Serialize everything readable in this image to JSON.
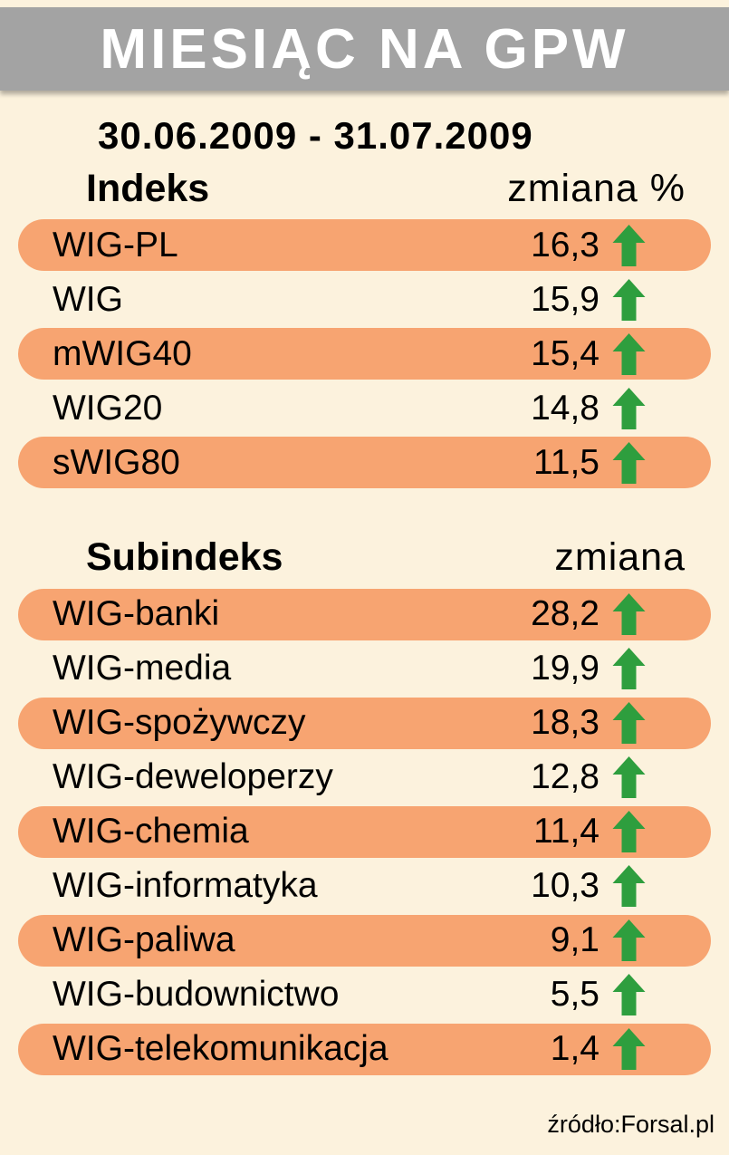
{
  "header": {
    "title": "MIESIĄC NA GPW"
  },
  "period": "30.06.2009 - 31.07.2009",
  "sections": [
    {
      "name_header": "Indeks",
      "change_header": "zmiana %",
      "rows": [
        {
          "label": "WIG-PL",
          "value": "16,3",
          "direction": "up"
        },
        {
          "label": "WIG",
          "value": "15,9",
          "direction": "up"
        },
        {
          "label": "mWIG40",
          "value": "15,4",
          "direction": "up"
        },
        {
          "label": "WIG20",
          "value": "14,8",
          "direction": "up"
        },
        {
          "label": "sWIG80",
          "value": "11,5",
          "direction": "up"
        }
      ]
    },
    {
      "name_header": "Subindeks",
      "change_header": "zmiana",
      "rows": [
        {
          "label": "WIG-banki",
          "value": "28,2",
          "direction": "up"
        },
        {
          "label": "WIG-media",
          "value": "19,9",
          "direction": "up"
        },
        {
          "label": "WIG-spożywczy",
          "value": "18,3",
          "direction": "up"
        },
        {
          "label": "WIG-deweloperzy",
          "value": "12,8",
          "direction": "up"
        },
        {
          "label": "WIG-chemia",
          "value": "11,4",
          "direction": "up"
        },
        {
          "label": "WIG-informatyka",
          "value": "10,3",
          "direction": "up"
        },
        {
          "label": "WIG-paliwa",
          "value": "9,1",
          "direction": "up"
        },
        {
          "label": "WIG-budownictwo",
          "value": "5,5",
          "direction": "up"
        },
        {
          "label": "WIG-telekomunikacja",
          "value": "1,4",
          "direction": "up"
        }
      ]
    }
  ],
  "footer": {
    "source": "źródło:Forsal.pl"
  },
  "colors": {
    "header_bg": "#a3a3a3",
    "page_bg": "#fcf2dd",
    "row_highlight": "#f7a471",
    "arrow_up": "#2e9e3e",
    "title_text": "#ffffff",
    "body_text": "#000000"
  },
  "chart_data": {
    "type": "table",
    "title": "MIESIĄC NA GPW",
    "subtitle": "30.06.2009 - 31.07.2009",
    "tables": [
      {
        "name": "Indeks",
        "value_label": "zmiana %",
        "categories": [
          "WIG-PL",
          "WIG",
          "mWIG40",
          "WIG20",
          "sWIG80"
        ],
        "values": [
          16.3,
          15.9,
          15.4,
          14.8,
          11.5
        ],
        "direction": [
          "up",
          "up",
          "up",
          "up",
          "up"
        ]
      },
      {
        "name": "Subindeks",
        "value_label": "zmiana",
        "categories": [
          "WIG-banki",
          "WIG-media",
          "WIG-spożywczy",
          "WIG-deweloperzy",
          "WIG-chemia",
          "WIG-informatyka",
          "WIG-paliwa",
          "WIG-budownictwo",
          "WIG-telekomunikacja"
        ],
        "values": [
          28.2,
          19.9,
          18.3,
          12.8,
          11.4,
          10.3,
          9.1,
          5.5,
          1.4
        ],
        "direction": [
          "up",
          "up",
          "up",
          "up",
          "up",
          "up",
          "up",
          "up",
          "up"
        ]
      }
    ],
    "source": "źródło:Forsal.pl"
  }
}
